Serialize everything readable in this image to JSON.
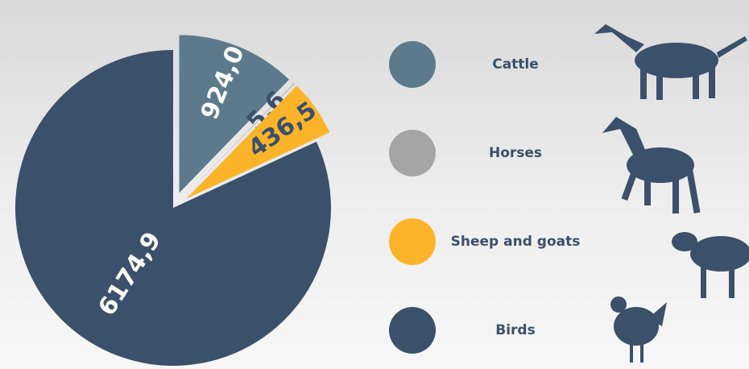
{
  "chart_data": {
    "type": "pie",
    "categories": [
      "Cattle",
      "Horses",
      "Sheep and goats",
      "Birds"
    ],
    "values": [
      924.0,
      5.6,
      436.5,
      6174.9
    ],
    "value_labels": [
      "924,0",
      "5,6",
      "436,5",
      "6174,9"
    ],
    "colors": [
      "#5d7a8c",
      "#a5a5a5",
      "#fbb42a",
      "#3b506b"
    ]
  }
}
